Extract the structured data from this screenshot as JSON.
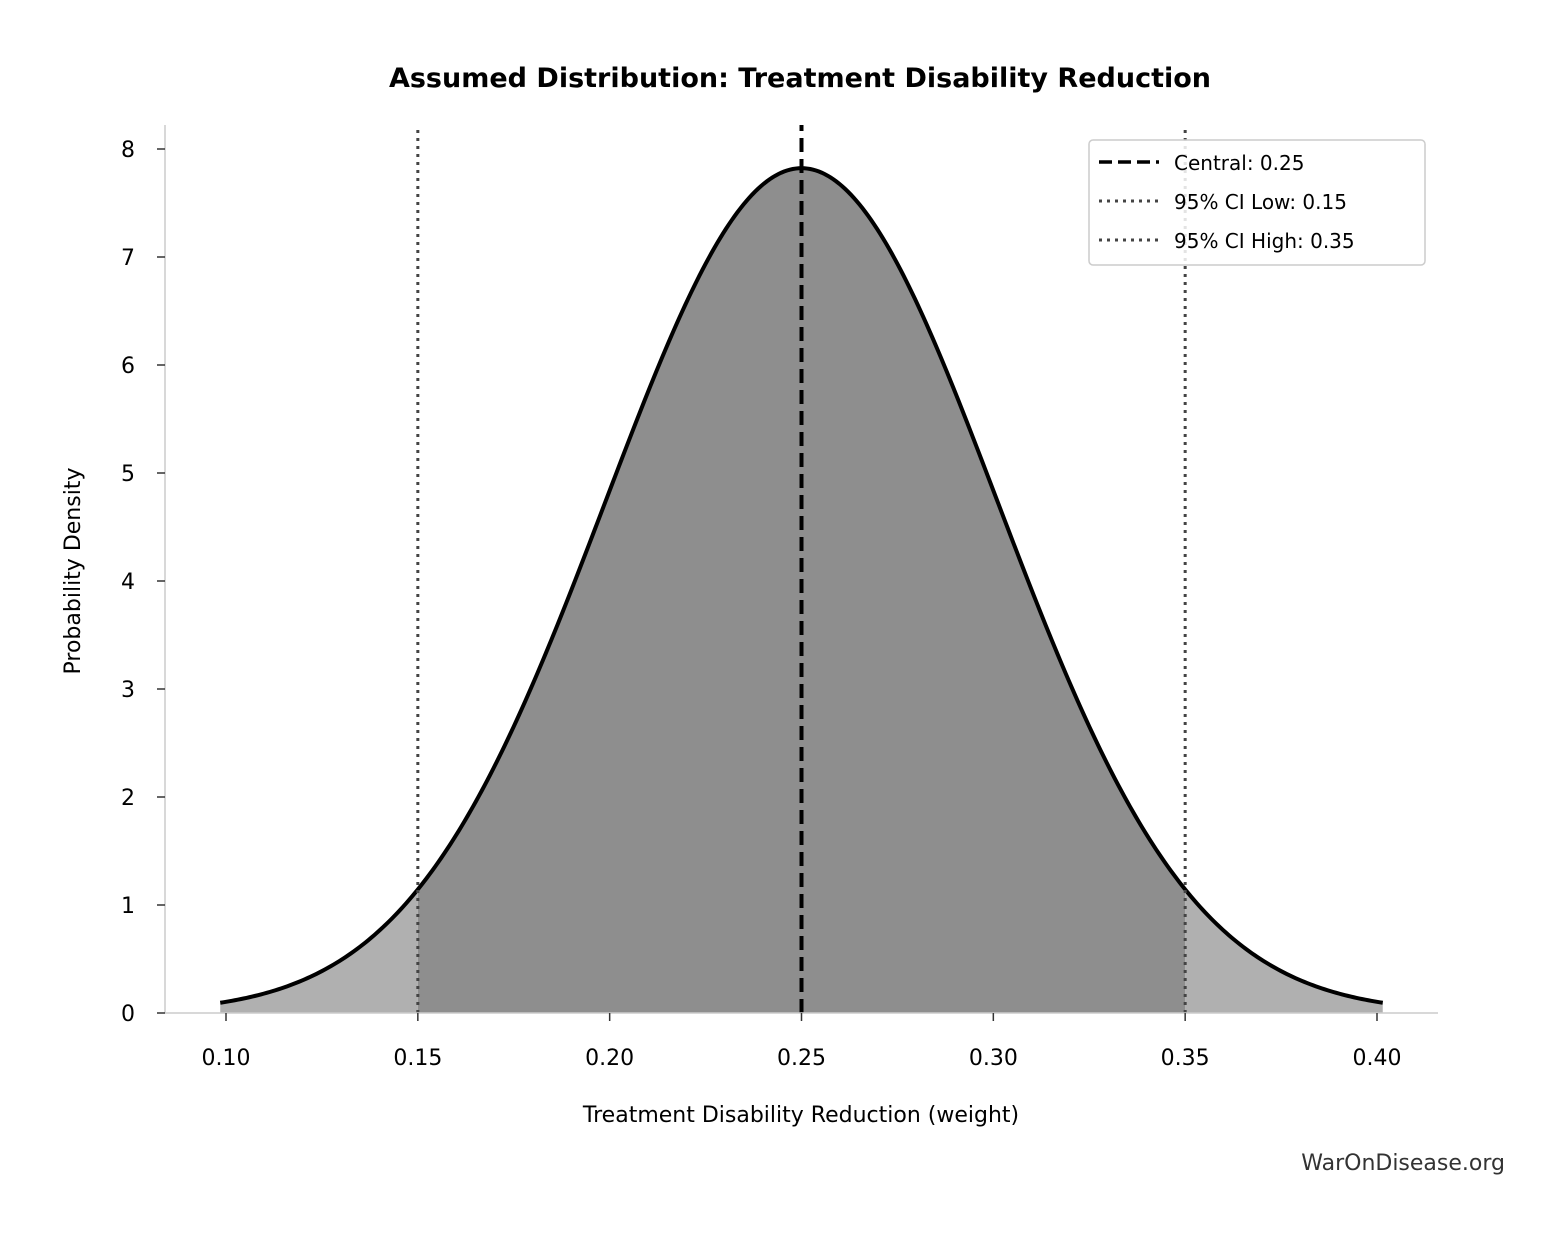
{
  "chart_data": {
    "type": "area",
    "title": "Assumed Distribution: Treatment Disability Reduction",
    "xlabel": "Treatment Disability Reduction (weight)",
    "ylabel": "Probability Density",
    "distribution": {
      "kind": "normal",
      "mean": 0.25,
      "sd": 0.051,
      "x_range": [
        0.0985,
        0.4015
      ]
    },
    "xlim": [
      0.084,
      0.415
    ],
    "ylim": [
      0,
      8.2
    ],
    "xticks": [
      "0.10",
      "0.15",
      "0.20",
      "0.25",
      "0.30",
      "0.35",
      "0.40"
    ],
    "yticks": [
      "0",
      "1",
      "2",
      "3",
      "4",
      "5",
      "6",
      "7",
      "8"
    ],
    "grid": false,
    "reference_lines": [
      {
        "x": 0.25,
        "style": "dashed",
        "label": "Central: 0.25",
        "color": "#000000"
      },
      {
        "x": 0.15,
        "style": "dotted",
        "label": "95% CI Low: 0.15",
        "color": "#444444"
      },
      {
        "x": 0.35,
        "style": "dotted",
        "label": "95% CI High: 0.35",
        "color": "#444444"
      }
    ],
    "fill_colors": {
      "ci": "#8e8e8e",
      "tails": "#b0b0b0"
    },
    "legend_placement": "top-right"
  },
  "watermark": "WarOnDisease.org"
}
